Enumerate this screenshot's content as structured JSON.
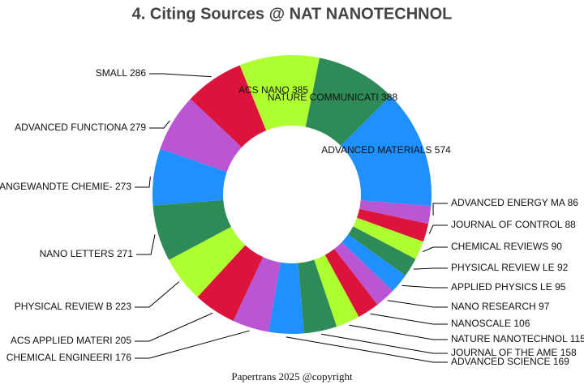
{
  "chart_data": {
    "type": "donut",
    "title": "4. Citing Sources @ NAT NANOTECHNOL",
    "categories": [
      "ADVANCED MATERIALS",
      "ADVANCED ENERGY MA",
      "JOURNAL OF CONTROL",
      "CHEMICAL REVIEWS",
      "PHYSICAL REVIEW LE",
      "APPLIED PHYSICS LE",
      "NANO RESEARCH",
      "NANOSCALE",
      "NATURE NANOTECHNOL",
      "JOURNAL OF THE AME",
      "ADVANCED SCIENCE",
      "CHEMICAL ENGINEERI",
      "ACS APPLIED MATERI",
      "PHYSICAL REVIEW B",
      "NANO LETTERS",
      "ANGEWANDTE CHEMIE-",
      "ADVANCED FUNCTIONA",
      "SMALL",
      "ACS NANO",
      "NATURE COMMUNICATI"
    ],
    "values": [
      574,
      86,
      88,
      90,
      92,
      95,
      97,
      106,
      115,
      158,
      169,
      176,
      205,
      223,
      271,
      273,
      279,
      286,
      385,
      388
    ],
    "colors": [
      "#1e90ff",
      "#ba55d3",
      "#dc143c",
      "#adff2f",
      "#2e8b57"
    ],
    "footer": "Papertrans 2025 @copyright"
  }
}
